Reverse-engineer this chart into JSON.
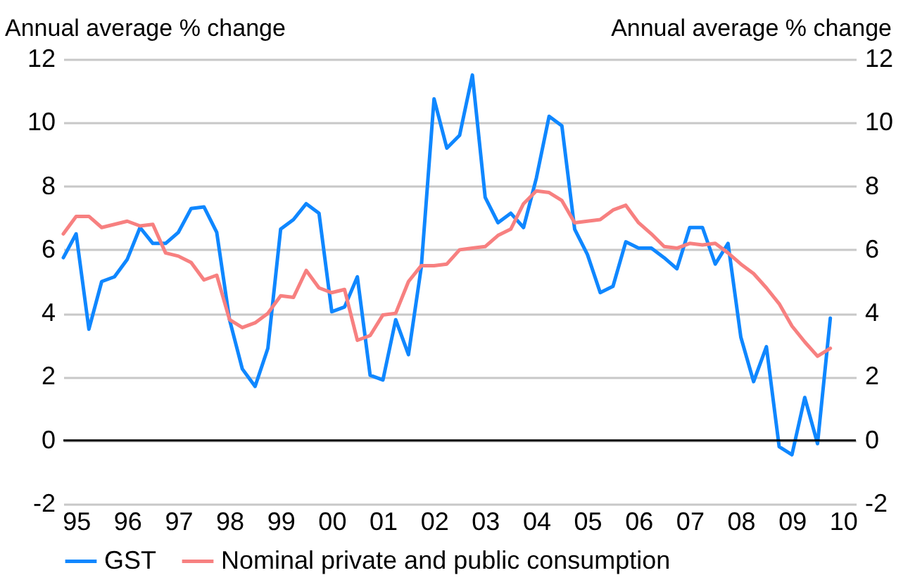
{
  "chart_data": {
    "type": "line",
    "ylabel": "Annual average % change",
    "y2label": "Annual average % change",
    "categories": [
      null,
      "95",
      null,
      null,
      null,
      "96",
      null,
      null,
      null,
      "97",
      null,
      null,
      null,
      "98",
      null,
      null,
      null,
      "99",
      null,
      null,
      null,
      "00",
      null,
      null,
      null,
      "01",
      null,
      null,
      null,
      "02",
      null,
      null,
      null,
      "03",
      null,
      null,
      null,
      "04",
      null,
      null,
      null,
      "05",
      null,
      null,
      null,
      "06",
      null,
      null,
      null,
      "07",
      null,
      null,
      null,
      "08",
      null,
      null,
      null,
      "09",
      null,
      null,
      null,
      "10",
      null
    ],
    "series": [
      {
        "name": "GST",
        "color": "#0f87ff",
        "values": [
          5.75,
          6.5,
          3.5,
          5.0,
          5.15,
          5.7,
          6.7,
          6.2,
          6.2,
          6.55,
          7.3,
          7.35,
          6.55,
          3.8,
          2.25,
          1.7,
          2.9,
          6.65,
          6.95,
          7.45,
          7.15,
          4.05,
          4.2,
          5.15,
          2.05,
          1.9,
          3.8,
          2.7,
          5.45,
          10.75,
          9.2,
          9.6,
          11.5,
          7.65,
          6.85,
          7.15,
          6.7,
          8.25,
          10.2,
          9.9,
          6.65,
          5.85,
          4.65,
          4.85,
          6.25,
          6.05,
          6.05,
          5.75,
          5.4,
          6.7,
          6.7,
          5.55,
          6.2,
          3.25,
          1.85,
          2.95,
          -0.2,
          -0.45,
          1.35,
          -0.1,
          3.85,
          null,
          null
        ]
      },
      {
        "name": "Nominal private and public consumption",
        "color": "#f78080",
        "values": [
          6.5,
          7.05,
          7.05,
          6.7,
          6.8,
          6.9,
          6.75,
          6.8,
          5.9,
          5.8,
          5.6,
          5.05,
          5.2,
          3.8,
          3.55,
          3.7,
          4.0,
          4.55,
          4.5,
          5.35,
          4.8,
          4.65,
          4.75,
          3.15,
          3.3,
          3.95,
          4.0,
          5.0,
          5.5,
          5.5,
          5.55,
          6.0,
          6.05,
          6.1,
          6.45,
          6.65,
          7.45,
          7.85,
          7.8,
          7.55,
          6.85,
          6.9,
          6.95,
          7.25,
          7.4,
          6.85,
          6.5,
          6.1,
          6.05,
          6.2,
          6.15,
          6.2,
          5.9,
          5.55,
          5.25,
          4.8,
          4.3,
          3.6,
          3.1,
          2.65,
          2.9,
          null,
          null
        ]
      }
    ],
    "ylim": [
      -2,
      12
    ],
    "yticks": [
      -2,
      0,
      2,
      4,
      6,
      8,
      10,
      12
    ],
    "y2lim": [
      -2,
      12
    ],
    "y2ticks": [
      -2,
      0,
      2,
      4,
      6,
      8,
      10,
      12
    ],
    "ref_lines": [
      {
        "axis": "y",
        "value": 0,
        "color": "#000000"
      }
    ],
    "grid": "y",
    "legend": "bottom",
    "line_style": "solid"
  }
}
